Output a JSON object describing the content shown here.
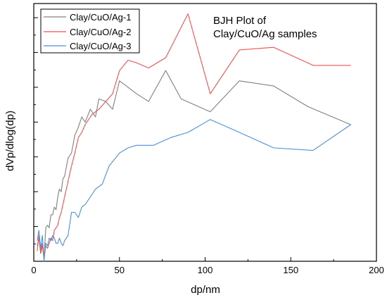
{
  "chart_data": {
    "type": "line",
    "title": "",
    "annotation": [
      "BJH Plot of",
      "Clay/CuO/Ag samples"
    ],
    "xlabel": "dp/nm",
    "ylabel": "dVp/dlog(dp)",
    "xlim": [
      0,
      200
    ],
    "ylim": [
      0,
      100
    ],
    "xticks": [
      0,
      50,
      100,
      150,
      200
    ],
    "grid": false,
    "legend": "top-left",
    "series": [
      {
        "name": "Clay/CuO/Ag-1",
        "color": "#808080",
        "x": [
          2,
          3,
          4,
          5,
          6,
          7,
          8,
          9,
          10,
          11,
          12,
          13,
          14,
          15,
          16,
          17,
          18,
          20,
          22,
          24,
          26,
          28,
          30,
          33,
          36,
          38,
          42,
          46,
          50,
          54,
          60,
          67,
          77,
          86,
          103,
          120,
          140,
          160,
          185
        ],
        "y": [
          6,
          9,
          4,
          7,
          1,
          13,
          14,
          13,
          18,
          18,
          21,
          20,
          25,
          28,
          27,
          32,
          33,
          40,
          42,
          49,
          52,
          56,
          54,
          59,
          56,
          63,
          62,
          59,
          70,
          68,
          65,
          62,
          74,
          63,
          58,
          70,
          68,
          60,
          53
        ]
      },
      {
        "name": "Clay/CuO/Ag-2",
        "color": "#f05050",
        "x": [
          2,
          3,
          4,
          5,
          6,
          7,
          8,
          9,
          10,
          11,
          12,
          13,
          14,
          15,
          16,
          17,
          18,
          20,
          22,
          24,
          26,
          28,
          30,
          32,
          34,
          36,
          38,
          42,
          46,
          50,
          55,
          60,
          67,
          77,
          90,
          103,
          120,
          140,
          163,
          185
        ],
        "y": [
          4,
          10,
          3,
          6,
          1,
          6,
          5,
          7,
          9,
          8,
          12,
          13,
          14,
          17,
          19,
          22,
          25,
          31,
          37,
          42,
          48,
          50,
          53,
          55,
          57,
          58,
          59,
          62,
          65,
          74,
          78,
          77,
          75,
          79,
          96,
          65,
          82,
          83,
          76,
          76
        ]
      },
      {
        "name": "Clay/CuO/Ag-3",
        "color": "#4a90d9",
        "x": [
          2,
          3,
          4,
          5,
          6,
          7,
          8,
          9,
          10,
          11,
          12,
          13,
          14,
          15,
          16,
          17,
          18,
          20,
          22,
          24,
          26,
          28,
          30,
          33,
          36,
          40,
          44,
          50,
          55,
          60,
          70,
          80,
          90,
          103,
          120,
          140,
          163,
          185
        ],
        "y": [
          8,
          12,
          5,
          10,
          0,
          7,
          6,
          9,
          8,
          10,
          9,
          7,
          7,
          9,
          7,
          6,
          8,
          10,
          19,
          19,
          17,
          21,
          22,
          25,
          28,
          30,
          37,
          42,
          44,
          45,
          45,
          48,
          50,
          55,
          50,
          44,
          43,
          53
        ]
      }
    ]
  }
}
